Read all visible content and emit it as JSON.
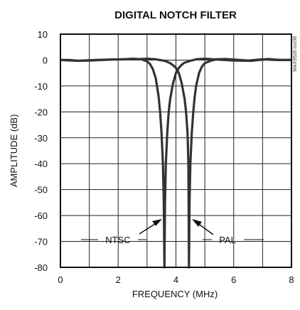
{
  "chart_data": {
    "type": "line",
    "title": "DIGITAL NOTCH FILTER",
    "xlabel": "FREQUENCY (MHz)",
    "ylabel": "AMPLITUDE (dB)",
    "xlim": [
      0,
      8
    ],
    "ylim": [
      -80,
      10
    ],
    "x_ticks": [
      "0",
      "2",
      "4",
      "6",
      "8"
    ],
    "y_ticks": [
      "10",
      "0",
      "-10",
      "-20",
      "-30",
      "-40",
      "-50",
      "-60",
      "-70",
      "-80"
    ],
    "grid": true,
    "figure_code": "MAX9526 toc08",
    "series": [
      {
        "name": "NTSC",
        "x": [
          0,
          0.3,
          0.6,
          1.0,
          1.4,
          1.8,
          2.2,
          2.5,
          2.8,
          3.0,
          3.1,
          3.2,
          3.3,
          3.4,
          3.45,
          3.5,
          3.55,
          3.58,
          3.6,
          3.62,
          3.65,
          3.7,
          3.75,
          3.8,
          3.9,
          4.0,
          4.1,
          4.2,
          4.3,
          4.5,
          4.7,
          5.0,
          5.4,
          6.0,
          6.6,
          7.2,
          7.6,
          8.0
        ],
        "y": [
          0,
          0,
          -0.3,
          -0.2,
          0,
          0.2,
          0.3,
          0.5,
          0.3,
          -0.5,
          -1.5,
          -3.5,
          -7,
          -14,
          -20,
          -28,
          -40,
          -55,
          -80,
          -55,
          -40,
          -28,
          -20,
          -15,
          -9,
          -5,
          -3,
          -1.8,
          -1,
          -0.3,
          0.3,
          0.5,
          0.2,
          -0.2,
          -0.3,
          0.4,
          0,
          0
        ]
      },
      {
        "name": "PAL",
        "x": [
          0,
          0.6,
          1.2,
          1.8,
          2.2,
          2.6,
          3.0,
          3.3,
          3.6,
          3.7,
          3.8,
          3.9,
          4.0,
          4.1,
          4.2,
          4.3,
          4.35,
          4.4,
          4.43,
          4.45,
          4.47,
          4.5,
          4.55,
          4.6,
          4.65,
          4.7,
          4.8,
          4.9,
          5.0,
          5.2,
          5.4,
          5.7,
          6.0,
          6.5,
          7.0,
          7.5,
          8.0
        ],
        "y": [
          0,
          -0.3,
          0,
          0.2,
          0.3,
          0.3,
          0.5,
          0.3,
          -0.3,
          -0.7,
          -1.2,
          -2,
          -3,
          -5,
          -9,
          -15,
          -20,
          -28,
          -40,
          -80,
          -55,
          -40,
          -28,
          -20,
          -14,
          -10,
          -5,
          -2.5,
          -1.2,
          -0.3,
          0.3,
          0.4,
          0.2,
          -0.2,
          0.3,
          0,
          0
        ]
      }
    ],
    "annotations": [
      {
        "text": "NTSC",
        "points_to_series": "NTSC"
      },
      {
        "text": "PAL",
        "points_to_series": "PAL"
      }
    ]
  }
}
